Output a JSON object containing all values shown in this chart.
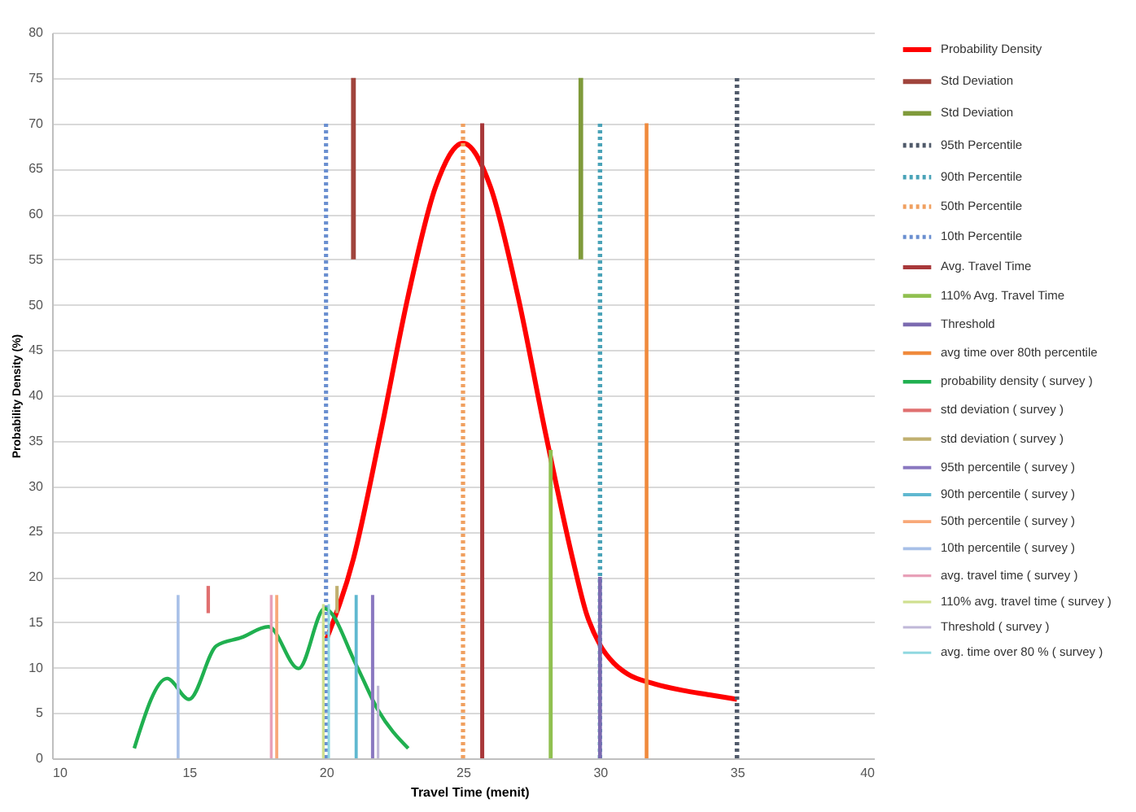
{
  "chart_data": {
    "type": "line",
    "xlabel": "Travel Time (menit)",
    "ylabel": "Probability Density (%)",
    "xlim": [
      10,
      40
    ],
    "xticks": [
      10,
      15,
      20,
      25,
      30,
      35,
      40
    ],
    "ylim": [
      0,
      80
    ],
    "yticks": [
      0,
      5,
      10,
      15,
      20,
      25,
      30,
      35,
      40,
      45,
      50,
      55,
      60,
      65,
      70,
      75,
      80
    ],
    "grid": "y",
    "legend": "right",
    "marker": "none",
    "series": [
      {
        "name": "Probability Density",
        "color": "#ff0000",
        "line_style": "solid",
        "x": [
          20,
          21,
          22,
          23,
          24,
          25,
          26,
          27,
          28,
          29,
          29.5,
          30,
          30.5,
          31,
          32,
          33,
          34,
          35
        ],
        "values": [
          13,
          22,
          36,
          51,
          63,
          67.8,
          63,
          51,
          36,
          22,
          16,
          12.5,
          10.5,
          9.3,
          8.2,
          7.5,
          7,
          6.5
        ]
      },
      {
        "name": "Std Deviation",
        "color": "#a0443c",
        "line_style": "solid",
        "x": [
          21,
          21
        ],
        "values": [
          55,
          75
        ]
      },
      {
        "name": "Std Deviation",
        "color": "#7f9a3a",
        "line_style": "solid",
        "x": [
          29.3,
          29.3
        ],
        "values": [
          55,
          75
        ]
      },
      {
        "name": "95th Percentile",
        "color": "#505a6a",
        "line_style": "dotted",
        "x": [
          35,
          35
        ],
        "values": [
          0,
          75
        ]
      },
      {
        "name": "90th Percentile",
        "color": "#4aa3b8",
        "line_style": "dotted",
        "x": [
          30,
          30
        ],
        "values": [
          0,
          70
        ]
      },
      {
        "name": "50th Percentile",
        "color": "#f0a060",
        "line_style": "dotted",
        "x": [
          25,
          25
        ],
        "values": [
          0,
          70
        ]
      },
      {
        "name": "10th Percentile",
        "color": "#6a8fd0",
        "line_style": "dotted",
        "x": [
          20,
          20
        ],
        "values": [
          0,
          70
        ]
      },
      {
        "name": "Avg. Travel Time",
        "color": "#a8383a",
        "line_style": "solid",
        "x": [
          25.7,
          25.7
        ],
        "values": [
          0,
          70
        ]
      },
      {
        "name": "110% Avg. Travel Time",
        "color": "#90c050",
        "line_style": "solid",
        "x": [
          28.2,
          28.2
        ],
        "values": [
          0,
          34
        ]
      },
      {
        "name": "Threshold",
        "color": "#7b6ab0",
        "line_style": "solid",
        "x": [
          30,
          30
        ],
        "values": [
          0,
          20
        ]
      },
      {
        "name": "avg time over 80th percentile",
        "color": "#f08a3c",
        "line_style": "solid",
        "x": [
          31.7,
          31.7
        ],
        "values": [
          0,
          70
        ]
      },
      {
        "name": "probability density ( survey )",
        "color": "#20b050",
        "line_style": "solid",
        "x": [
          13,
          14.2,
          15,
          16,
          16.9,
          17.9,
          19,
          19.95,
          21.1,
          21.9,
          23
        ],
        "values": [
          1.1,
          8.8,
          6.5,
          12.4,
          13.3,
          14.5,
          9.9,
          16.5,
          10.3,
          5.3,
          1.1
        ]
      },
      {
        "name": "std deviation ( survey )",
        "color": "#e07070",
        "line_style": "solid",
        "x": [
          15.7,
          15.7
        ],
        "values": [
          16,
          19
        ]
      },
      {
        "name": "std deviation ( survey )",
        "color": "#c0b070",
        "line_style": "solid",
        "x": [
          20.4,
          20.4
        ],
        "values": [
          16,
          19
        ]
      },
      {
        "name": "95th percentile ( survey )",
        "color": "#8a78c0",
        "line_style": "solid",
        "x": [
          21.7,
          21.7
        ],
        "values": [
          0,
          18
        ]
      },
      {
        "name": "90th percentile ( survey )",
        "color": "#60b8d0",
        "line_style": "solid",
        "x": [
          21.1,
          21.1
        ],
        "values": [
          0,
          18
        ]
      },
      {
        "name": "50th percentile ( survey )",
        "color": "#f8a878",
        "line_style": "solid",
        "x": [
          18.2,
          18.2
        ],
        "values": [
          0,
          18
        ]
      },
      {
        "name": "10th percentile ( survey )",
        "color": "#a8c0e8",
        "line_style": "solid",
        "x": [
          14.6,
          14.6
        ],
        "values": [
          0,
          18
        ]
      },
      {
        "name": "avg. travel time ( survey )",
        "color": "#e8a0b8",
        "line_style": "solid",
        "x": [
          18,
          18
        ],
        "values": [
          0,
          18
        ]
      },
      {
        "name": "110% avg. travel time ( survey )",
        "color": "#d0e090",
        "line_style": "solid",
        "x": [
          19.9,
          19.9
        ],
        "values": [
          0,
          17
        ]
      },
      {
        "name": "Threshold ( survey )",
        "color": "#c0b8d8",
        "line_style": "solid",
        "x": [
          21.9,
          21.9
        ],
        "values": [
          0,
          8
        ]
      },
      {
        "name": "avg. time over 80 % ( survey )",
        "color": "#90d8e0",
        "line_style": "solid",
        "x": [
          20.1,
          20.1
        ],
        "values": [
          0,
          17
        ]
      }
    ]
  }
}
